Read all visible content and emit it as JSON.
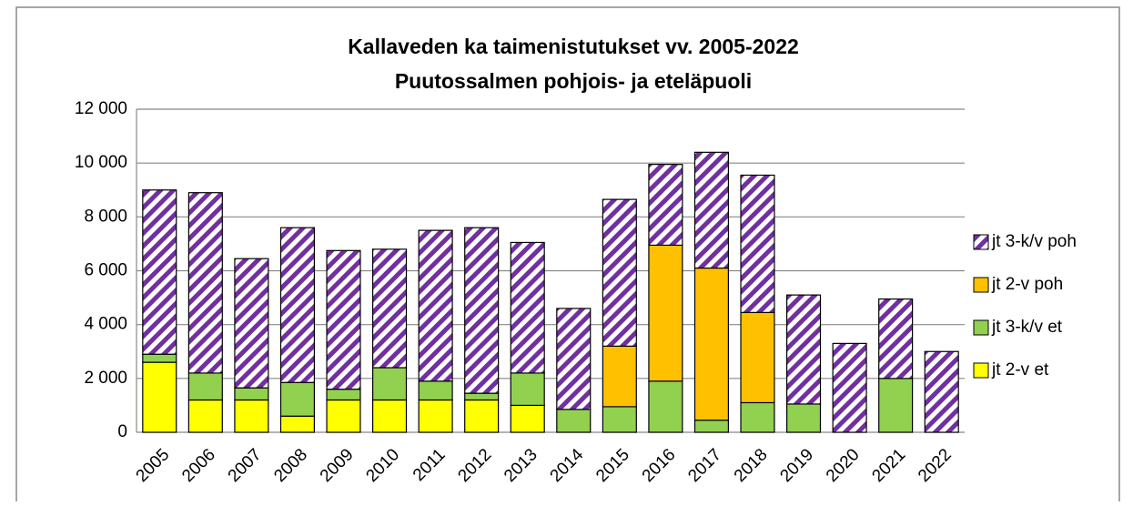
{
  "chart_data": {
    "type": "stacked_bar",
    "title": "Kallaveden ka taimenistutukset vv. 2005-2022",
    "subtitle": "Puutossalmen pohjois- ja eteläpuoli",
    "categories": [
      "2005",
      "2006",
      "2007",
      "2008",
      "2009",
      "2010",
      "2011",
      "2012",
      "2013",
      "2014",
      "2015",
      "2016",
      "2017",
      "2018",
      "2019",
      "2020",
      "2021",
      "2022"
    ],
    "series": [
      {
        "name": "jt 2-v et",
        "color": "#ffff00",
        "values": [
          2600,
          1200,
          1200,
          600,
          1200,
          1200,
          1200,
          1200,
          1000,
          0,
          0,
          0,
          0,
          0,
          0,
          0,
          0,
          0
        ]
      },
      {
        "name": "jt 3-k/v et",
        "color": "#92d050",
        "values": [
          300,
          1000,
          450,
          1250,
          400,
          1200,
          700,
          250,
          1200,
          850,
          950,
          1900,
          450,
          1100,
          1050,
          0,
          2000,
          0
        ]
      },
      {
        "name": "jt 2-v poh",
        "color": "#ffc000",
        "values": [
          0,
          0,
          0,
          0,
          0,
          0,
          0,
          0,
          0,
          0,
          2250,
          5050,
          5650,
          3350,
          0,
          0,
          0,
          0
        ]
      },
      {
        "name": "jt 3-k/v poh",
        "color": "#7030a0",
        "hatch": true,
        "values": [
          6100,
          6700,
          4800,
          5750,
          5150,
          4400,
          5600,
          6150,
          4850,
          3750,
          5450,
          3000,
          4300,
          5100,
          4050,
          3300,
          2950,
          3000
        ]
      }
    ],
    "ylim": [
      0,
      12000
    ],
    "yticks": [
      0,
      {
        "value": 2000,
        "label": "2 000"
      },
      {
        "value": 4000,
        "label": "4 000"
      },
      {
        "value": 6000,
        "label": "6 000"
      },
      {
        "value": 8000,
        "label": "8 000"
      },
      {
        "value": 10000,
        "label": "10 000"
      },
      {
        "value": 12000,
        "label": "12 000"
      }
    ],
    "grid": true,
    "legend": "right"
  }
}
